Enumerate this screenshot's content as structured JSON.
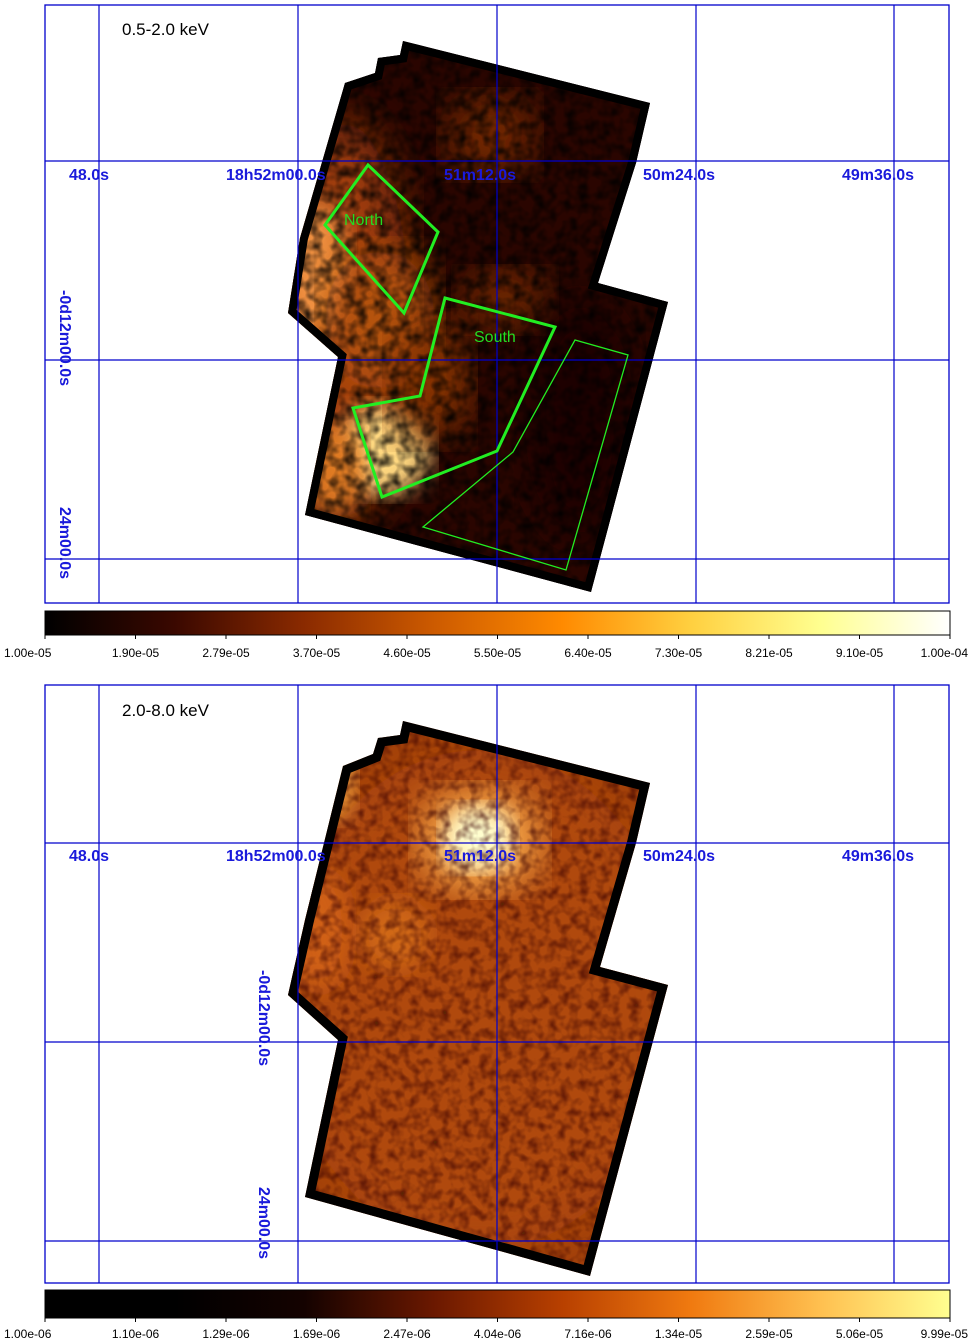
{
  "panels": [
    {
      "title": "0.5-2.0 keV",
      "ra_labels": [
        "48.0s",
        "18h52m00.0s",
        "51m12.0s",
        "50m24.0s",
        "49m36.0s"
      ],
      "dec_labels": [
        "-0d12m00.0s",
        "24m00.0s"
      ],
      "regions": [
        "North",
        "South"
      ],
      "colorbar_ticks": [
        "1.00e-05",
        "1.90e-05",
        "2.79e-05",
        "3.70e-05",
        "4.60e-05",
        "5.50e-05",
        "6.40e-05",
        "7.30e-05",
        "8.21e-05",
        "9.10e-05",
        "1.00e-04"
      ],
      "colorbar_colors": [
        "#000000",
        "#3a0800",
        "#8a2a00",
        "#cc5a00",
        "#ff8a00",
        "#ffd040",
        "#ffff90",
        "#ffffff"
      ]
    },
    {
      "title": "2.0-8.0 keV",
      "ra_labels": [
        "48.0s",
        "18h52m00.0s",
        "51m12.0s",
        "50m24.0s",
        "49m36.0s"
      ],
      "dec_labels": [
        "-0d12m00.0s",
        "24m00.0s"
      ],
      "colorbar_ticks": [
        "1.00e-06",
        "1.10e-06",
        "1.29e-06",
        "1.69e-06",
        "2.47e-06",
        "4.04e-06",
        "7.16e-06",
        "1.34e-05",
        "2.59e-05",
        "5.06e-05",
        "9.99e-05"
      ],
      "colorbar_colors": [
        "#000000",
        "#000000",
        "#140200",
        "#6a1800",
        "#b84000",
        "#f07a10",
        "#ffc050",
        "#ffff90"
      ]
    }
  ],
  "colors": {
    "grid": "#0000cc",
    "axis_label": "#1a1adb",
    "region": "#22dd22"
  }
}
